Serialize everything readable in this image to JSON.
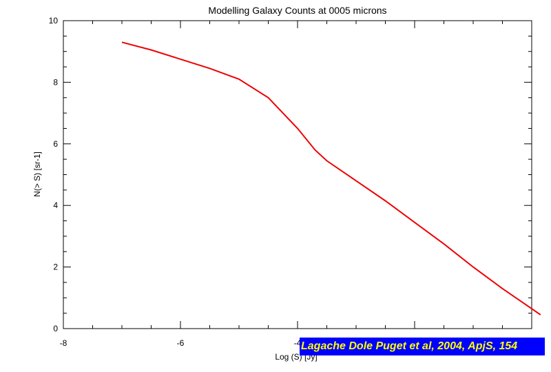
{
  "chart_data": {
    "type": "line",
    "title": "Modelling Galaxy Counts at 0005 microns",
    "xlabel": "Log (S) [Jy]",
    "ylabel": "N(> S) [sr-1]",
    "xlim": [
      -8,
      0
    ],
    "ylim": [
      0,
      10
    ],
    "x_ticks": [
      -8,
      -6,
      -4,
      -2,
      0
    ],
    "y_ticks": [
      0,
      2,
      4,
      6,
      8,
      10
    ],
    "x_tick_labels": [
      "-8",
      "-6",
      "-4",
      "",
      ""
    ],
    "y_tick_labels": [
      "0",
      "2",
      "4",
      "6",
      "8",
      "10"
    ],
    "grid": false,
    "line_color": "#ee0000",
    "series": [
      {
        "x": [
          -7.0,
          -6.5,
          -6.0,
          -5.5,
          -5.0,
          -4.5,
          -4.0,
          -3.7,
          -3.5,
          -3.0,
          -2.5,
          -2.0,
          -1.5,
          -1.0,
          -0.5,
          0.15
        ],
        "y": [
          9.3,
          9.05,
          8.75,
          8.45,
          8.1,
          7.5,
          6.5,
          5.8,
          5.45,
          4.8,
          4.15,
          3.45,
          2.75,
          2.0,
          1.3,
          0.45
        ]
      }
    ]
  },
  "citation": {
    "text": "Lagache Dole Puget et al, 2004, ApjS, 154",
    "background": "#0000ff",
    "color": "#ffff00"
  }
}
